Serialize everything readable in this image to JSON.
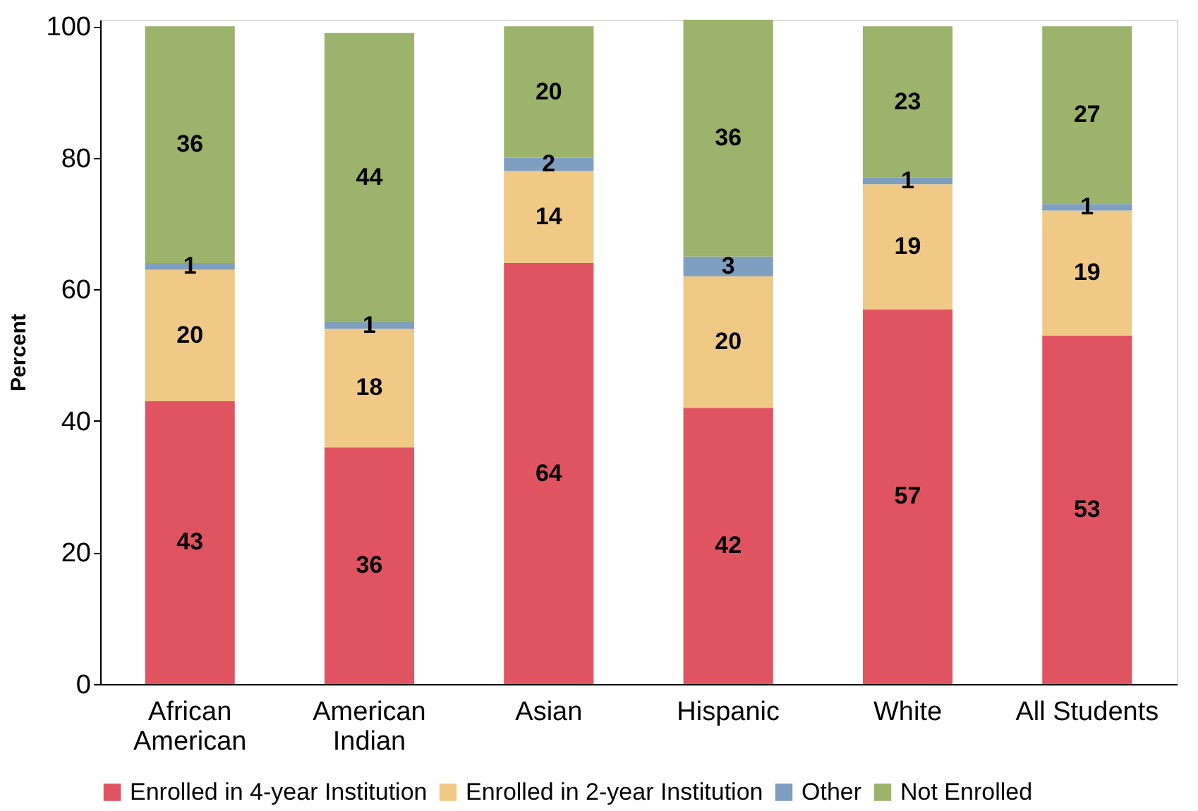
{
  "chart_data": {
    "type": "bar",
    "stacked": true,
    "ylabel": "Percent",
    "categories": [
      "African American",
      "American Indian",
      "Asian",
      "Hispanic",
      "White",
      "All Students"
    ],
    "series": [
      {
        "name": "Enrolled in 4-year Institution",
        "color": "#e05461",
        "values": [
          43,
          36,
          64,
          42,
          57,
          53
        ]
      },
      {
        "name": "Enrolled in 2-year Institution",
        "color": "#f0c987",
        "values": [
          20,
          18,
          14,
          20,
          19,
          19
        ]
      },
      {
        "name": "Other",
        "color": "#7f9fc0",
        "values": [
          1,
          1,
          2,
          3,
          1,
          1
        ]
      },
      {
        "name": "Not Enrolled",
        "color": "#9bb36a",
        "values": [
          36,
          44,
          20,
          36,
          23,
          27
        ]
      }
    ],
    "ylim": [
      0,
      101
    ],
    "yticks": [
      0,
      20,
      40,
      60,
      80,
      100
    ],
    "grid": false,
    "legend": "bottom",
    "data_labels": true
  }
}
